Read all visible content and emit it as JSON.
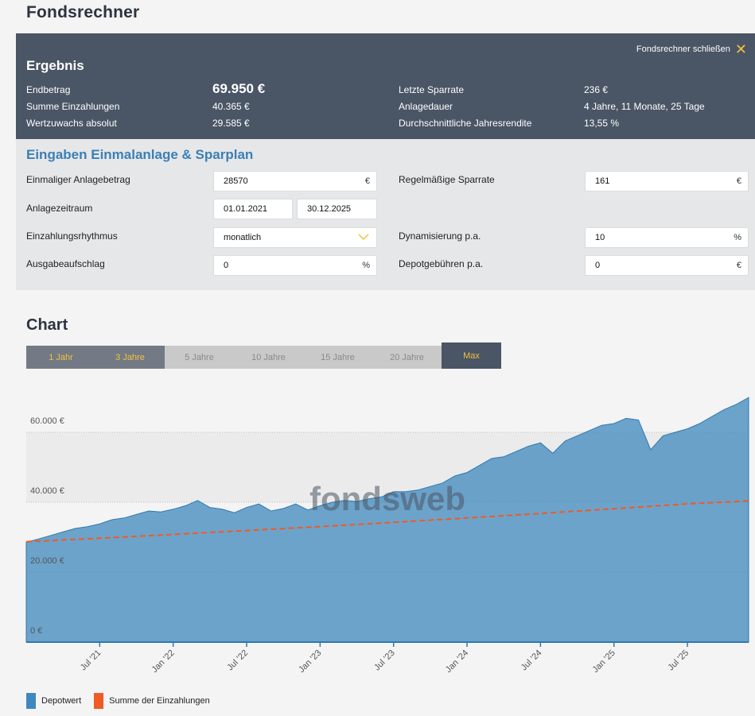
{
  "page_title": "Fondsrechner",
  "result": {
    "title": "Ergebnis",
    "close_label": "Fondsrechner schließen",
    "rows_left": [
      {
        "label": "Endbetrag",
        "value": "69.950 €"
      },
      {
        "label": "Summe Einzahlungen",
        "value": "40.365 €"
      },
      {
        "label": "Wertzuwachs absolut",
        "value": "29.585 €"
      }
    ],
    "rows_right": [
      {
        "label": "Letzte Sparrate",
        "value": "236 €"
      },
      {
        "label": "Anlagedauer",
        "value": "4 Jahre, 11 Monate, 25 Tage"
      },
      {
        "label": "Durchschnittliche Jahresrendite",
        "value": "13,55 %"
      }
    ]
  },
  "inputs": {
    "title": "Eingaben Einmalanlage & Sparplan",
    "einmal_label": "Einmaliger Anlagebetrag",
    "einmal_value": "28570",
    "einmal_unit": "€",
    "zeitraum_label": "Anlagezeitraum",
    "zeitraum_start": "01.01.2021",
    "zeitraum_end": "30.12.2025",
    "rhythmus_label": "Einzahlungsrhythmus",
    "rhythmus_value": "monatlich",
    "aufschlag_label": "Ausgabeaufschlag",
    "aufschlag_value": "0",
    "aufschlag_unit": "%",
    "sparrate_label": "Regelmäßige Sparrate",
    "sparrate_value": "161",
    "sparrate_unit": "€",
    "dynamik_label": "Dynamisierung p.a.",
    "dynamik_value": "10",
    "dynamik_unit": "%",
    "depot_label": "Depotgebühren p.a.",
    "depot_value": "0",
    "depot_unit": "€"
  },
  "chart_section": {
    "title": "Chart",
    "ranges": [
      "1 Jahr",
      "3 Jahre",
      "5 Jahre",
      "10 Jahre",
      "15 Jahre",
      "20 Jahre",
      "Max"
    ],
    "watermark": "fondsweb"
  },
  "colors": {
    "depotwert": "#3f88bd",
    "einzahlungen": "#f05a24",
    "accent": "#f0c23b",
    "panel": "#4a5565"
  },
  "chart_data": {
    "type": "area",
    "x_ticks": [
      "Jul '21",
      "Jan '22",
      "Jul '22",
      "Jan '23",
      "Jul '23",
      "Jan '24",
      "Jul '24",
      "Jan '25",
      "Jul '25"
    ],
    "y_ticks": [
      "0 €",
      "20.000 €",
      "40.000 €",
      "60.000 €"
    ],
    "ylim": [
      0,
      70000
    ],
    "xlim": [
      "2021-01",
      "2025-12"
    ],
    "series": [
      {
        "name": "Depotwert",
        "x": [
          "2021-01",
          "2021-02",
          "2021-03",
          "2021-04",
          "2021-05",
          "2021-06",
          "2021-07",
          "2021-08",
          "2021-09",
          "2021-10",
          "2021-11",
          "2021-12",
          "2022-01",
          "2022-02",
          "2022-03",
          "2022-04",
          "2022-05",
          "2022-06",
          "2022-07",
          "2022-08",
          "2022-09",
          "2022-10",
          "2022-11",
          "2022-12",
          "2023-01",
          "2023-02",
          "2023-03",
          "2023-04",
          "2023-05",
          "2023-06",
          "2023-07",
          "2023-08",
          "2023-09",
          "2023-10",
          "2023-11",
          "2023-12",
          "2024-01",
          "2024-02",
          "2024-03",
          "2024-04",
          "2024-05",
          "2024-06",
          "2024-07",
          "2024-08",
          "2024-09",
          "2024-10",
          "2024-11",
          "2024-12",
          "2025-01",
          "2025-02",
          "2025-03",
          "2025-04",
          "2025-05",
          "2025-06",
          "2025-07",
          "2025-08",
          "2025-09",
          "2025-10",
          "2025-11",
          "2025-12"
        ],
        "values": [
          28600,
          29500,
          30500,
          31500,
          32500,
          33000,
          33800,
          35000,
          35500,
          36500,
          37500,
          37200,
          38000,
          39000,
          40500,
          38500,
          38000,
          37000,
          38500,
          39500,
          37500,
          38200,
          39500,
          37800,
          39000,
          40000,
          40500,
          40200,
          41000,
          41500,
          43000,
          43000,
          43500,
          44500,
          45500,
          47500,
          48500,
          50500,
          52500,
          53000,
          54500,
          56000,
          57000,
          54000,
          57500,
          59000,
          60500,
          62000,
          62500,
          64000,
          63500,
          55000,
          59000,
          60000,
          61000,
          62500,
          64500,
          66500,
          68000,
          69950
        ]
      },
      {
        "name": "Summe der Einzahlungen",
        "x": [
          "2021-01",
          "2021-07",
          "2022-01",
          "2022-07",
          "2023-01",
          "2023-07",
          "2024-01",
          "2024-07",
          "2025-01",
          "2025-07",
          "2025-12"
        ],
        "values": [
          28731,
          29700,
          30800,
          31900,
          33050,
          34250,
          35500,
          36800,
          38150,
          39550,
          40365
        ]
      }
    ]
  }
}
